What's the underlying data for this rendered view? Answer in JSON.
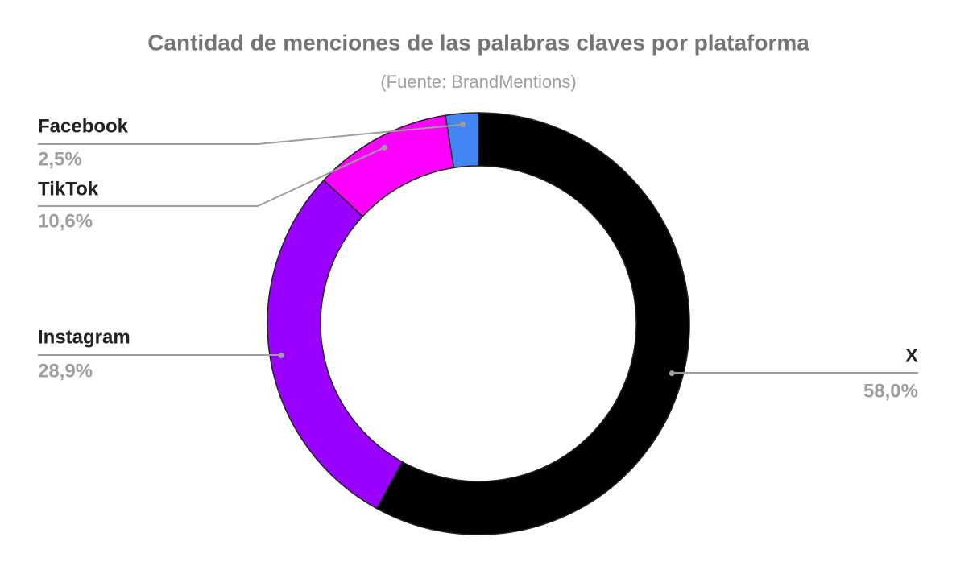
{
  "chart_data": {
    "type": "donut",
    "title": "Cantidad de menciones de las palabras claves por plataforma",
    "subtitle": "(Fuente: BrandMentions)",
    "categories": [
      "X",
      "Instagram",
      "TikTok",
      "Facebook"
    ],
    "values": [
      58.0,
      28.9,
      10.6,
      2.5
    ],
    "value_labels": [
      "58,0%",
      "28,9%",
      "10,6%",
      "2,5%"
    ],
    "colors": [
      "#000000",
      "#9900ff",
      "#ff00ff",
      "#4285f4"
    ]
  }
}
